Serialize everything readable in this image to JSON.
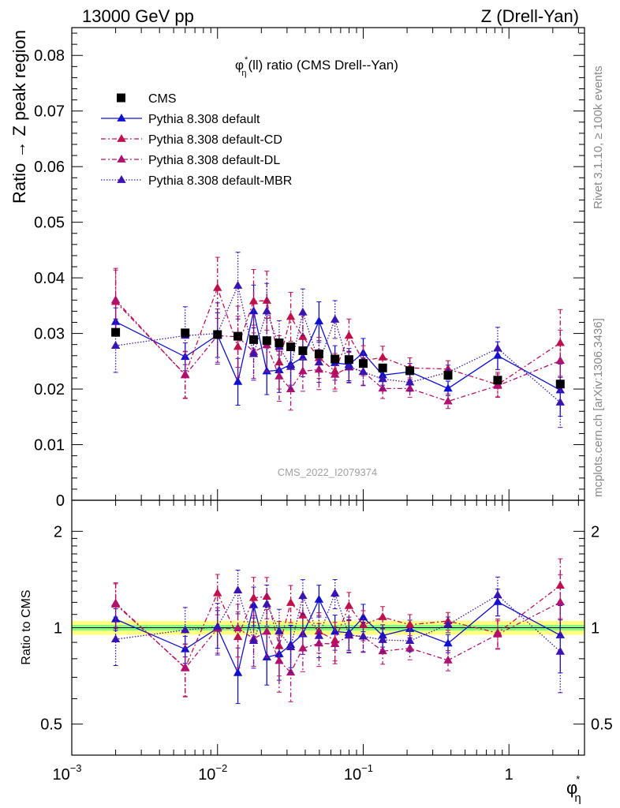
{
  "header": {
    "left": "13000 GeV pp",
    "right": "Z (Drell-Yan)"
  },
  "side_labels": {
    "rivet": "Rivet 3.1.10, ≥ 100k events",
    "mcplots": "mcplots.cern.ch [arXiv:1306.3436]"
  },
  "watermark": "CMS_2022_I2079374",
  "colors": {
    "cms": "#000000",
    "default": "#1010d0",
    "cd": "#c0104c",
    "dl": "#b0106e",
    "mbr": "#3a14b0",
    "band_outer": "#ffff80",
    "band_inner": "#80ff80"
  },
  "chart_data": [
    {
      "type": "scatter",
      "title_main": "φ",
      "title_sup": "*",
      "title_sub": "η",
      "title_rest": "(ll) ratio (CMS Drell--Yan)",
      "ylabel": "Ratio → Z peak region",
      "xscale": "log",
      "xlim": [
        0.001,
        3.3
      ],
      "ylim": [
        0,
        0.085
      ],
      "yticks": [
        0.01,
        0.02,
        0.03,
        0.04,
        0.05,
        0.06,
        0.07,
        0.08
      ],
      "ytick_labels": [
        "0.01",
        "0.02",
        "0.03",
        "0.04",
        "0.05",
        "0.06",
        "0.07",
        "0.08"
      ],
      "bottom_tick_label": "0",
      "legend_position": "top-left",
      "x": [
        0.002,
        0.006,
        0.01,
        0.0138,
        0.0177,
        0.0218,
        0.0265,
        0.0318,
        0.0385,
        0.0497,
        0.064,
        0.0798,
        0.1,
        0.136,
        0.209,
        0.382,
        0.837,
        2.25
      ],
      "series": [
        {
          "name": "CMS",
          "key": "cms",
          "style": "square",
          "values": [
            0.0302,
            0.0301,
            0.0298,
            0.0295,
            0.0289,
            0.0287,
            0.0283,
            0.0276,
            0.0269,
            0.0263,
            0.0254,
            0.0253,
            0.0246,
            0.0238,
            0.0233,
            0.0225,
            0.0216,
            0.0209
          ]
        },
        {
          "name": "Pythia 8.308 default",
          "key": "default",
          "style": "solid",
          "values": [
            0.0321,
            0.0258,
            0.0297,
            0.0213,
            0.034,
            0.0232,
            0.0234,
            0.0244,
            0.0257,
            0.0322,
            0.0247,
            0.0244,
            0.0265,
            0.0225,
            0.0231,
            0.0201,
            0.026,
            0.0198
          ],
          "errors": [
            0.0025,
            0.0025,
            0.004,
            0.0042,
            0.0047,
            0.0042,
            0.004,
            0.0037,
            0.0035,
            0.0035,
            0.0031,
            0.0029,
            0.0026,
            0.0018,
            0.0015,
            0.0013,
            0.0025,
            0.0047
          ]
        },
        {
          "name": "Pythia 8.308 default-CD",
          "key": "cd",
          "style": "dashdot",
          "values": [
            0.0357,
            0.0226,
            0.0382,
            0.0276,
            0.0358,
            0.0359,
            0.0248,
            0.033,
            0.0294,
            0.0256,
            0.0232,
            0.0296,
            0.0251,
            0.0257,
            0.0238,
            0.0236,
            0.0208,
            0.0283
          ],
          "errors": [
            0.0057,
            0.0042,
            0.0055,
            0.0055,
            0.0057,
            0.0053,
            0.0048,
            0.0044,
            0.004,
            0.0037,
            0.0032,
            0.003,
            0.0027,
            0.002,
            0.0018,
            0.0015,
            0.0022,
            0.006
          ]
        },
        {
          "name": "Pythia 8.308 default-DL",
          "key": "dl",
          "style": "dashdot",
          "values": [
            0.036,
            0.0225,
            0.0296,
            0.0294,
            0.0267,
            0.0279,
            0.0223,
            0.02,
            0.0232,
            0.0235,
            0.0226,
            0.0239,
            0.0231,
            0.0201,
            0.0201,
            0.0178,
            0.0206,
            0.0251
          ],
          "errors": [
            0.0057,
            0.0042,
            0.0048,
            0.0055,
            0.0048,
            0.0048,
            0.0045,
            0.0038,
            0.0036,
            0.0036,
            0.003,
            0.0028,
            0.0025,
            0.0018,
            0.0016,
            0.0013,
            0.0021,
            0.0055
          ]
        },
        {
          "name": "Pythia 8.308 default-MBR",
          "key": "mbr",
          "style": "dotted",
          "values": [
            0.0278,
            0.0296,
            0.03,
            0.0386,
            0.0263,
            0.034,
            0.0276,
            0.024,
            0.0338,
            0.0248,
            0.0325,
            0.024,
            0.0231,
            0.0218,
            0.0212,
            0.023,
            0.0273,
            0.0176
          ],
          "errors": [
            0.0048,
            0.0052,
            0.0055,
            0.006,
            0.0047,
            0.005,
            0.0047,
            0.004,
            0.0042,
            0.0036,
            0.0034,
            0.0028,
            0.0024,
            0.0018,
            0.0016,
            0.0013,
            0.0038,
            0.0045
          ]
        }
      ]
    },
    {
      "type": "scatter",
      "ylabel": "Ratio to CMS",
      "xlabel_main": "φ",
      "xlabel_sup": "*",
      "xlabel_sub": "η",
      "xscale": "log",
      "yscale": "log",
      "xlim": [
        0.001,
        3.3
      ],
      "ylim": [
        0.4,
        2.5
      ],
      "xtick_labels": [
        "10",
        "−3",
        "10",
        "−2",
        "10",
        "−1",
        "1"
      ],
      "xticks": [
        0.001,
        0.01,
        0.1,
        1
      ],
      "yticks": [
        0.5,
        1,
        2
      ],
      "ytick_labels": [
        "0.5",
        "1",
        "2"
      ],
      "band_outer": 0.05,
      "band_inner": 0.02,
      "series_keys": [
        "default",
        "cd",
        "dl",
        "mbr"
      ]
    }
  ]
}
